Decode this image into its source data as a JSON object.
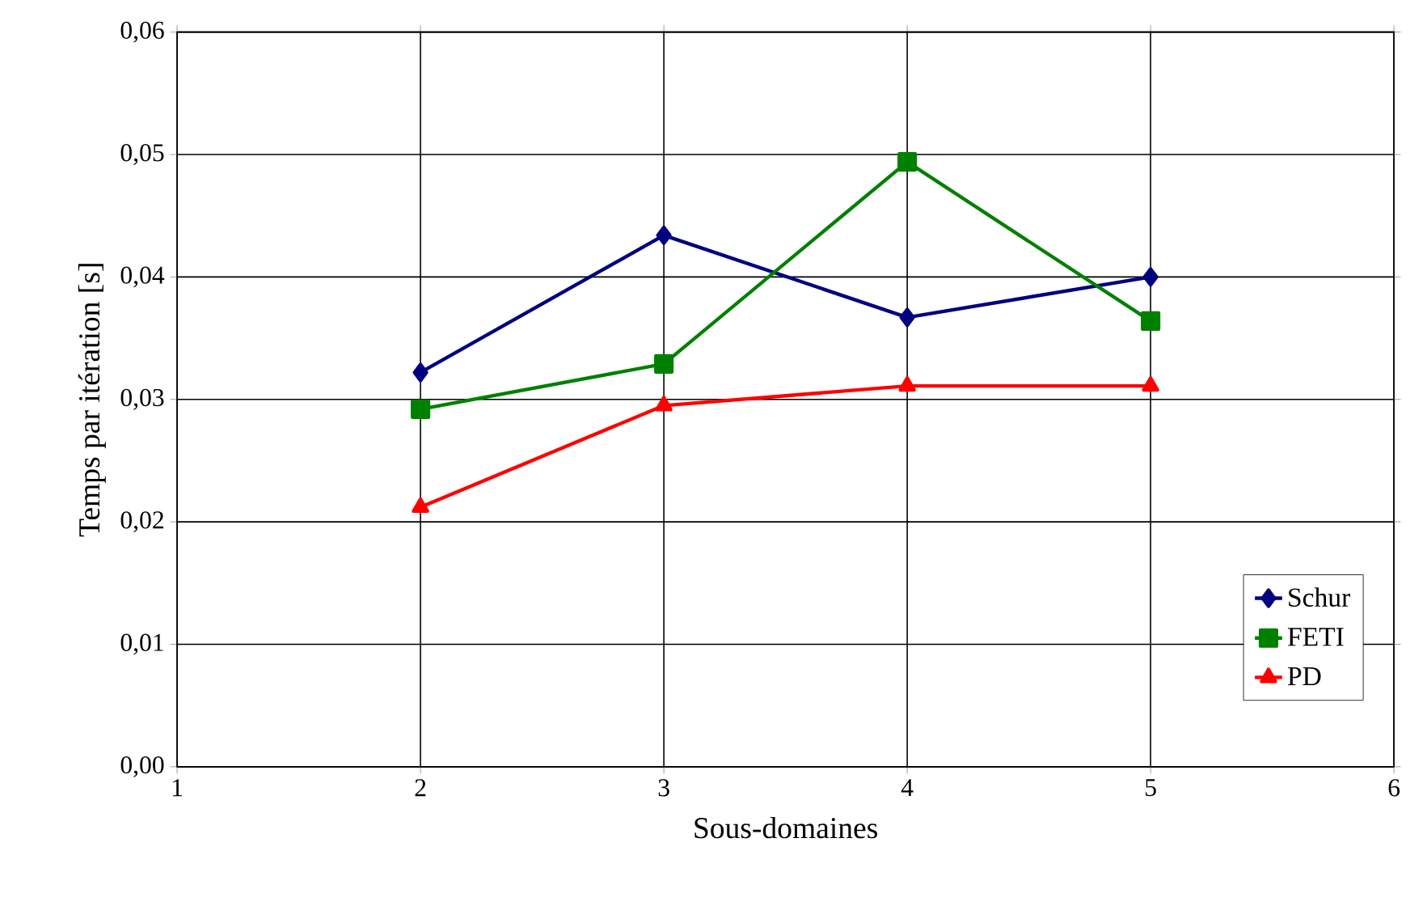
{
  "chart_data": {
    "type": "line",
    "xlabel": "Sous-domaines",
    "ylabel": "Temps par itération [s]",
    "x": [
      2,
      3,
      4,
      5
    ],
    "series": [
      {
        "name": "Schur",
        "color": "#000080",
        "marker": "diamond",
        "values": [
          0.0322,
          0.0434,
          0.0367,
          0.04
        ]
      },
      {
        "name": "FETI",
        "color": "#008000",
        "marker": "square",
        "values": [
          0.0292,
          0.0329,
          0.0494,
          0.0364
        ]
      },
      {
        "name": "PD",
        "color": "#ff0000",
        "marker": "triangle",
        "values": [
          0.0212,
          0.0295,
          0.0311,
          0.0311
        ]
      }
    ],
    "xlim": [
      1,
      6
    ],
    "xticks": [
      1,
      2,
      3,
      4,
      5,
      6
    ],
    "ylim": [
      0,
      0.06
    ],
    "yticks": [
      {
        "value": 0,
        "label": "0,00"
      },
      {
        "value": 0.01,
        "label": "0,01"
      },
      {
        "value": 0.02,
        "label": "0,02"
      },
      {
        "value": 0.03,
        "label": "0,03"
      },
      {
        "value": 0.04,
        "label": "0,04"
      },
      {
        "value": 0.05,
        "label": "0,05"
      },
      {
        "value": 0.06,
        "label": "0,06"
      }
    ],
    "grid": true,
    "legend": "bottom right",
    "line_style": "solid"
  }
}
